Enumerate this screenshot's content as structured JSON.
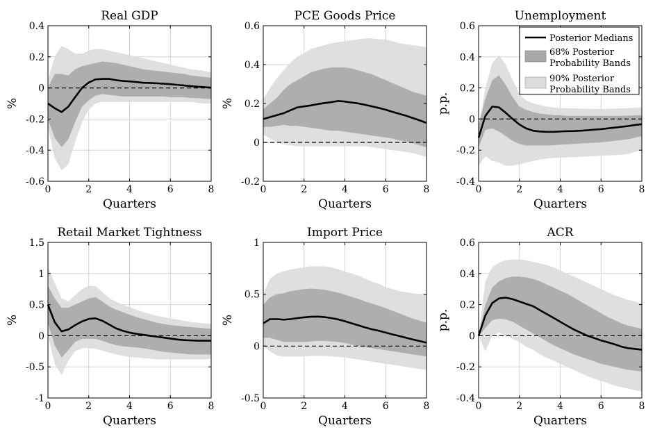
{
  "colors": {
    "band68": "#a9a9a9",
    "band90": "#dcdcdc",
    "median": "#000000",
    "zero_line": "#000000",
    "grid": "#d4d4d4",
    "axes": "#000000"
  },
  "legend": {
    "median": "Posterior Medians",
    "band68_line1": "68% Posterior",
    "band68_line2": "Probability Bands",
    "band90_line1": "90% Posterior",
    "band90_line2": "Probability Bands"
  },
  "chart_data": [
    {
      "type": "area",
      "title": "Real GDP",
      "xlabel": "Quarters",
      "ylabel": "%",
      "xlim": [
        0,
        8
      ],
      "ylim": [
        -0.6,
        0.4
      ],
      "xticks": [
        0,
        2,
        4,
        6,
        8
      ],
      "yticks": [
        -0.6,
        -0.4,
        -0.2,
        0,
        0.2,
        0.4
      ],
      "ytick_labels": [
        "-0.6",
        "-0.4",
        "-0.2",
        "0",
        "0.2",
        "0.4"
      ],
      "grid": true,
      "zero_line": true,
      "legend": false,
      "x": [
        0,
        0.33,
        0.67,
        1,
        1.33,
        1.67,
        2,
        2.33,
        2.67,
        3,
        3.33,
        3.67,
        4,
        4.33,
        4.67,
        5,
        5.33,
        5.67,
        6,
        6.33,
        6.67,
        7,
        7.33,
        7.67,
        8
      ],
      "median": [
        -0.1,
        -0.13,
        -0.155,
        -0.12,
        -0.06,
        0.0,
        0.035,
        0.055,
        0.058,
        0.058,
        0.05,
        0.045,
        0.042,
        0.038,
        0.033,
        0.032,
        0.03,
        0.027,
        0.024,
        0.02,
        0.016,
        0.012,
        0.008,
        0.005,
        0.002
      ],
      "band68_upper": [
        0.0,
        0.09,
        0.09,
        0.08,
        0.12,
        0.14,
        0.15,
        0.16,
        0.17,
        0.165,
        0.16,
        0.15,
        0.14,
        0.13,
        0.12,
        0.115,
        0.11,
        0.105,
        0.1,
        0.095,
        0.09,
        0.08,
        0.075,
        0.07,
        0.065
      ],
      "band68_lower": [
        -0.2,
        -0.32,
        -0.38,
        -0.33,
        -0.22,
        -0.12,
        -0.08,
        -0.05,
        -0.04,
        -0.045,
        -0.05,
        -0.055,
        -0.055,
        -0.055,
        -0.055,
        -0.055,
        -0.055,
        -0.055,
        -0.06,
        -0.06,
        -0.06,
        -0.065,
        -0.065,
        -0.07,
        -0.07
      ],
      "band90_upper": [
        0.05,
        0.2,
        0.27,
        0.25,
        0.22,
        0.22,
        0.24,
        0.25,
        0.25,
        0.24,
        0.23,
        0.22,
        0.21,
        0.2,
        0.19,
        0.18,
        0.17,
        0.16,
        0.15,
        0.14,
        0.13,
        0.12,
        0.115,
        0.11,
        0.1
      ],
      "band90_lower": [
        -0.25,
        -0.45,
        -0.53,
        -0.49,
        -0.35,
        -0.22,
        -0.14,
        -0.1,
        -0.09,
        -0.09,
        -0.09,
        -0.09,
        -0.09,
        -0.09,
        -0.09,
        -0.09,
        -0.09,
        -0.09,
        -0.09,
        -0.09,
        -0.09,
        -0.09,
        -0.095,
        -0.1,
        -0.1
      ]
    },
    {
      "type": "area",
      "title": "PCE Goods Price",
      "xlabel": "Quarters",
      "ylabel": "%",
      "xlim": [
        0,
        8
      ],
      "ylim": [
        -0.2,
        0.6
      ],
      "xticks": [
        0,
        2,
        4,
        6,
        8
      ],
      "yticks": [
        -0.2,
        0,
        0.2,
        0.4,
        0.6
      ],
      "ytick_labels": [
        "-0.2",
        "0",
        "0.2",
        "0.4",
        "0.6"
      ],
      "grid": true,
      "zero_line": true,
      "legend": false,
      "x": [
        0,
        0.33,
        0.67,
        1,
        1.33,
        1.67,
        2,
        2.33,
        2.67,
        3,
        3.33,
        3.67,
        4,
        4.33,
        4.67,
        5,
        5.33,
        5.67,
        6,
        6.33,
        6.67,
        7,
        7.33,
        7.67,
        8
      ],
      "median": [
        0.12,
        0.13,
        0.14,
        0.15,
        0.165,
        0.18,
        0.185,
        0.19,
        0.197,
        0.202,
        0.207,
        0.213,
        0.21,
        0.205,
        0.2,
        0.193,
        0.185,
        0.177,
        0.168,
        0.157,
        0.147,
        0.137,
        0.125,
        0.113,
        0.1
      ],
      "band68_upper": [
        0.17,
        0.2,
        0.23,
        0.27,
        0.3,
        0.32,
        0.34,
        0.36,
        0.37,
        0.38,
        0.385,
        0.385,
        0.385,
        0.38,
        0.37,
        0.36,
        0.35,
        0.335,
        0.32,
        0.305,
        0.29,
        0.275,
        0.26,
        0.25,
        0.24
      ],
      "band68_lower": [
        0.08,
        0.08,
        0.085,
        0.09,
        0.085,
        0.085,
        0.08,
        0.075,
        0.07,
        0.065,
        0.06,
        0.06,
        0.055,
        0.05,
        0.045,
        0.04,
        0.035,
        0.03,
        0.025,
        0.02,
        0.01,
        0.005,
        -0.005,
        -0.015,
        -0.025
      ],
      "band90_upper": [
        0.22,
        0.28,
        0.33,
        0.37,
        0.41,
        0.44,
        0.46,
        0.48,
        0.49,
        0.5,
        0.51,
        0.515,
        0.52,
        0.525,
        0.53,
        0.535,
        0.535,
        0.53,
        0.53,
        0.52,
        0.51,
        0.505,
        0.5,
        0.495,
        0.49
      ],
      "band90_lower": [
        0.04,
        0.02,
        0.0,
        -0.01,
        -0.015,
        -0.02,
        -0.02,
        -0.02,
        -0.02,
        -0.02,
        -0.02,
        -0.02,
        -0.02,
        -0.02,
        -0.02,
        -0.02,
        -0.025,
        -0.03,
        -0.035,
        -0.04,
        -0.045,
        -0.05,
        -0.055,
        -0.065,
        -0.075
      ]
    },
    {
      "type": "area",
      "title": "Unemployment",
      "xlabel": "Quarters",
      "ylabel": "p.p.",
      "xlim": [
        0,
        8
      ],
      "ylim": [
        -0.4,
        0.6
      ],
      "xticks": [
        0,
        2,
        4,
        6,
        8
      ],
      "yticks": [
        -0.4,
        -0.2,
        0,
        0.2,
        0.4,
        0.6
      ],
      "ytick_labels": [
        "-0.4",
        "-0.2",
        "0",
        "0.2",
        "0.4",
        "0.6"
      ],
      "grid": true,
      "zero_line": true,
      "legend": true,
      "legend_position": "top-right",
      "x": [
        0,
        0.33,
        0.67,
        1,
        1.33,
        1.67,
        2,
        2.33,
        2.67,
        3,
        3.33,
        3.67,
        4,
        4.33,
        4.67,
        5,
        5.33,
        5.67,
        6,
        6.33,
        6.67,
        7,
        7.33,
        7.67,
        8
      ],
      "median": [
        -0.12,
        0.02,
        0.08,
        0.075,
        0.04,
        0.0,
        -0.035,
        -0.06,
        -0.075,
        -0.08,
        -0.082,
        -0.082,
        -0.08,
        -0.078,
        -0.077,
        -0.075,
        -0.072,
        -0.068,
        -0.065,
        -0.06,
        -0.055,
        -0.05,
        -0.045,
        -0.038,
        -0.033
      ],
      "band68_upper": [
        -0.04,
        0.13,
        0.25,
        0.28,
        0.22,
        0.14,
        0.08,
        0.06,
        0.045,
        0.035,
        0.03,
        0.025,
        0.025,
        0.02,
        0.02,
        0.02,
        0.02,
        0.02,
        0.02,
        0.02,
        0.02,
        0.02,
        0.022,
        0.024,
        0.025
      ],
      "band68_lower": [
        -0.18,
        -0.07,
        -0.06,
        -0.08,
        -0.11,
        -0.14,
        -0.16,
        -0.17,
        -0.17,
        -0.17,
        -0.17,
        -0.168,
        -0.165,
        -0.163,
        -0.16,
        -0.157,
        -0.155,
        -0.152,
        -0.15,
        -0.145,
        -0.14,
        -0.135,
        -0.13,
        -0.12,
        -0.11
      ],
      "band90_upper": [
        -0.05,
        0.2,
        0.36,
        0.41,
        0.35,
        0.25,
        0.16,
        0.12,
        0.1,
        0.09,
        0.08,
        0.075,
        0.07,
        0.07,
        0.068,
        0.067,
        0.066,
        0.065,
        0.065,
        0.066,
        0.067,
        0.068,
        0.07,
        0.073,
        0.075
      ],
      "band90_lower": [
        -0.3,
        -0.24,
        -0.27,
        -0.28,
        -0.3,
        -0.3,
        -0.29,
        -0.28,
        -0.27,
        -0.26,
        -0.255,
        -0.25,
        -0.248,
        -0.246,
        -0.245,
        -0.243,
        -0.24,
        -0.238,
        -0.236,
        -0.234,
        -0.232,
        -0.23,
        -0.225,
        -0.21,
        -0.2
      ]
    },
    {
      "type": "area",
      "title": "Retail Market Tightness",
      "xlabel": "Quarters",
      "ylabel": "%",
      "xlim": [
        0,
        8
      ],
      "ylim": [
        -1,
        1.5
      ],
      "xticks": [
        0,
        2,
        4,
        6,
        8
      ],
      "yticks": [
        -1,
        -0.5,
        0,
        0.5,
        1,
        1.5
      ],
      "ytick_labels": [
        "-1",
        "-0.5",
        "0",
        "0.5",
        "1",
        "1.5"
      ],
      "grid": true,
      "zero_line": true,
      "legend": false,
      "x": [
        0,
        0.33,
        0.67,
        1,
        1.33,
        1.67,
        2,
        2.33,
        2.67,
        3,
        3.33,
        3.67,
        4,
        4.33,
        4.67,
        5,
        5.33,
        5.67,
        6,
        6.33,
        6.67,
        7,
        7.33,
        7.67,
        8
      ],
      "median": [
        0.5,
        0.22,
        0.07,
        0.1,
        0.17,
        0.23,
        0.27,
        0.28,
        0.24,
        0.18,
        0.12,
        0.08,
        0.05,
        0.03,
        0.015,
        0.0,
        -0.015,
        -0.03,
        -0.045,
        -0.06,
        -0.07,
        -0.075,
        -0.08,
        -0.08,
        -0.08
      ],
      "band68_upper": [
        0.8,
        0.6,
        0.45,
        0.45,
        0.5,
        0.55,
        0.6,
        0.62,
        0.55,
        0.47,
        0.42,
        0.38,
        0.34,
        0.3,
        0.27,
        0.24,
        0.21,
        0.19,
        0.17,
        0.16,
        0.15,
        0.14,
        0.13,
        0.12,
        0.11
      ],
      "band68_lower": [
        0.2,
        -0.15,
        -0.35,
        -0.23,
        -0.1,
        -0.05,
        -0.05,
        -0.05,
        -0.08,
        -0.12,
        -0.15,
        -0.17,
        -0.18,
        -0.19,
        -0.2,
        -0.22,
        -0.24,
        -0.26,
        -0.27,
        -0.28,
        -0.29,
        -0.3,
        -0.3,
        -0.3,
        -0.3
      ],
      "band90_upper": [
        1.1,
        0.85,
        0.6,
        0.55,
        0.65,
        0.75,
        0.8,
        0.8,
        0.7,
        0.6,
        0.55,
        0.5,
        0.46,
        0.42,
        0.38,
        0.35,
        0.32,
        0.3,
        0.28,
        0.26,
        0.24,
        0.22,
        0.21,
        0.2,
        0.19
      ],
      "band90_lower": [
        0.0,
        -0.45,
        -0.63,
        -0.4,
        -0.25,
        -0.2,
        -0.2,
        -0.21,
        -0.24,
        -0.27,
        -0.3,
        -0.32,
        -0.34,
        -0.35,
        -0.36,
        -0.37,
        -0.38,
        -0.38,
        -0.38,
        -0.38,
        -0.38,
        -0.38,
        -0.38,
        -0.38,
        -0.37
      ]
    },
    {
      "type": "area",
      "title": "Import Price",
      "xlabel": "Quarters",
      "ylabel": "%",
      "xlim": [
        0,
        8
      ],
      "ylim": [
        -0.5,
        1
      ],
      "xticks": [
        0,
        2,
        4,
        6,
        8
      ],
      "yticks": [
        -0.5,
        0,
        0.5,
        1
      ],
      "ytick_labels": [
        "-0.5",
        "0",
        "0.5",
        "1"
      ],
      "grid": true,
      "zero_line": true,
      "legend": false,
      "x": [
        0,
        0.33,
        0.67,
        1,
        1.33,
        1.67,
        2,
        2.33,
        2.67,
        3,
        3.33,
        3.67,
        4,
        4.33,
        4.67,
        5,
        5.33,
        5.67,
        6,
        6.33,
        6.67,
        7,
        7.33,
        7.67,
        8
      ],
      "median": [
        0.22,
        0.26,
        0.26,
        0.255,
        0.26,
        0.27,
        0.277,
        0.283,
        0.285,
        0.28,
        0.27,
        0.258,
        0.24,
        0.22,
        0.2,
        0.18,
        0.162,
        0.148,
        0.13,
        0.113,
        0.097,
        0.08,
        0.064,
        0.048,
        0.033
      ],
      "band68_upper": [
        0.4,
        0.47,
        0.5,
        0.51,
        0.53,
        0.54,
        0.55,
        0.555,
        0.55,
        0.545,
        0.53,
        0.515,
        0.495,
        0.475,
        0.455,
        0.43,
        0.41,
        0.39,
        0.365,
        0.34,
        0.315,
        0.29,
        0.265,
        0.245,
        0.225
      ],
      "band68_lower": [
        0.08,
        0.08,
        0.06,
        0.04,
        0.04,
        0.04,
        0.04,
        0.045,
        0.05,
        0.05,
        0.045,
        0.04,
        0.03,
        0.015,
        0.0,
        -0.01,
        -0.02,
        -0.03,
        -0.04,
        -0.05,
        -0.06,
        -0.07,
        -0.08,
        -0.09,
        -0.1
      ],
      "band90_upper": [
        0.5,
        0.65,
        0.7,
        0.72,
        0.74,
        0.75,
        0.76,
        0.77,
        0.77,
        0.77,
        0.76,
        0.74,
        0.72,
        0.7,
        0.68,
        0.65,
        0.62,
        0.6,
        0.57,
        0.55,
        0.53,
        0.52,
        0.51,
        0.5,
        0.49
      ],
      "band90_lower": [
        0.0,
        -0.05,
        -0.09,
        -0.1,
        -0.1,
        -0.1,
        -0.1,
        -0.095,
        -0.095,
        -0.095,
        -0.1,
        -0.105,
        -0.11,
        -0.12,
        -0.13,
        -0.14,
        -0.15,
        -0.16,
        -0.17,
        -0.18,
        -0.19,
        -0.2,
        -0.21,
        -0.22,
        -0.23
      ]
    },
    {
      "type": "area",
      "title": "ACR",
      "xlabel": "Quarters",
      "ylabel": "p.p.",
      "xlim": [
        0,
        8
      ],
      "ylim": [
        -0.4,
        0.6
      ],
      "xticks": [
        0,
        2,
        4,
        6,
        8
      ],
      "yticks": [
        -0.4,
        -0.2,
        0,
        0.2,
        0.4,
        0.6
      ],
      "ytick_labels": [
        "-0.4",
        "-0.2",
        "0",
        "0.2",
        "0.4",
        "0.6"
      ],
      "grid": true,
      "zero_line": true,
      "legend": false,
      "x": [
        0,
        0.33,
        0.67,
        1,
        1.33,
        1.67,
        2,
        2.33,
        2.67,
        3,
        3.33,
        3.67,
        4,
        4.33,
        4.67,
        5,
        5.33,
        5.67,
        6,
        6.33,
        6.67,
        7,
        7.33,
        7.67,
        8
      ],
      "median": [
        0.0,
        0.13,
        0.21,
        0.24,
        0.245,
        0.235,
        0.22,
        0.205,
        0.19,
        0.165,
        0.14,
        0.115,
        0.09,
        0.065,
        0.04,
        0.02,
        0.0,
        -0.015,
        -0.03,
        -0.042,
        -0.055,
        -0.07,
        -0.08,
        -0.085,
        -0.09
      ],
      "band68_upper": [
        0.0,
        0.2,
        0.31,
        0.35,
        0.37,
        0.38,
        0.38,
        0.375,
        0.365,
        0.35,
        0.33,
        0.31,
        0.29,
        0.27,
        0.245,
        0.22,
        0.195,
        0.17,
        0.145,
        0.12,
        0.1,
        0.08,
        0.065,
        0.055,
        0.045
      ],
      "band68_lower": [
        0.0,
        0.05,
        0.1,
        0.11,
        0.105,
        0.09,
        0.065,
        0.04,
        0.015,
        -0.01,
        -0.035,
        -0.06,
        -0.08,
        -0.1,
        -0.12,
        -0.135,
        -0.15,
        -0.165,
        -0.18,
        -0.19,
        -0.2,
        -0.21,
        -0.22,
        -0.225,
        -0.23
      ],
      "band90_upper": [
        0.0,
        0.35,
        0.44,
        0.47,
        0.485,
        0.49,
        0.49,
        0.485,
        0.475,
        0.465,
        0.455,
        0.44,
        0.42,
        0.4,
        0.38,
        0.36,
        0.34,
        0.32,
        0.3,
        0.28,
        0.26,
        0.245,
        0.23,
        0.22,
        0.21
      ],
      "band90_lower": [
        0.0,
        -0.1,
        0.0,
        0.02,
        0.0,
        -0.02,
        -0.04,
        -0.07,
        -0.09,
        -0.12,
        -0.14,
        -0.16,
        -0.18,
        -0.2,
        -0.22,
        -0.24,
        -0.26,
        -0.275,
        -0.29,
        -0.305,
        -0.32,
        -0.33,
        -0.34,
        -0.35,
        -0.36
      ]
    }
  ]
}
